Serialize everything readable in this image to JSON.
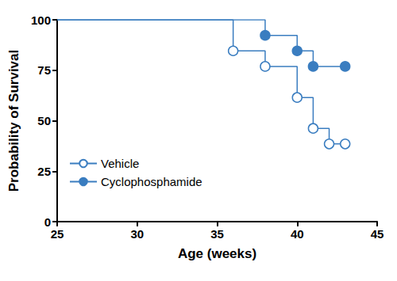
{
  "chart_data": {
    "type": "line",
    "line_style": "step",
    "x_label": "Age (weeks)",
    "y_label": "Probability of Survival",
    "xlim": [
      25,
      45
    ],
    "xticks": [
      25,
      30,
      35,
      40,
      45
    ],
    "ylim": [
      0,
      100
    ],
    "yticks": [
      0,
      25,
      50,
      75,
      100
    ],
    "grid": false,
    "legend": "lower left",
    "series": [
      {
        "name": "Vehicle",
        "color": "#3a7dc0",
        "marker": "open_circle",
        "x": [
          25,
          36,
          38,
          40,
          41,
          42,
          43
        ],
        "values": [
          100,
          84.6,
          76.9,
          61.5,
          46.2,
          38.5,
          38.5
        ]
      },
      {
        "name": "Cyclophosphamide",
        "color": "#3a7dc0",
        "marker": "circle",
        "x": [
          25,
          38,
          40,
          41,
          43
        ],
        "values": [
          100,
          92.3,
          84.6,
          76.9,
          76.9
        ]
      }
    ]
  }
}
